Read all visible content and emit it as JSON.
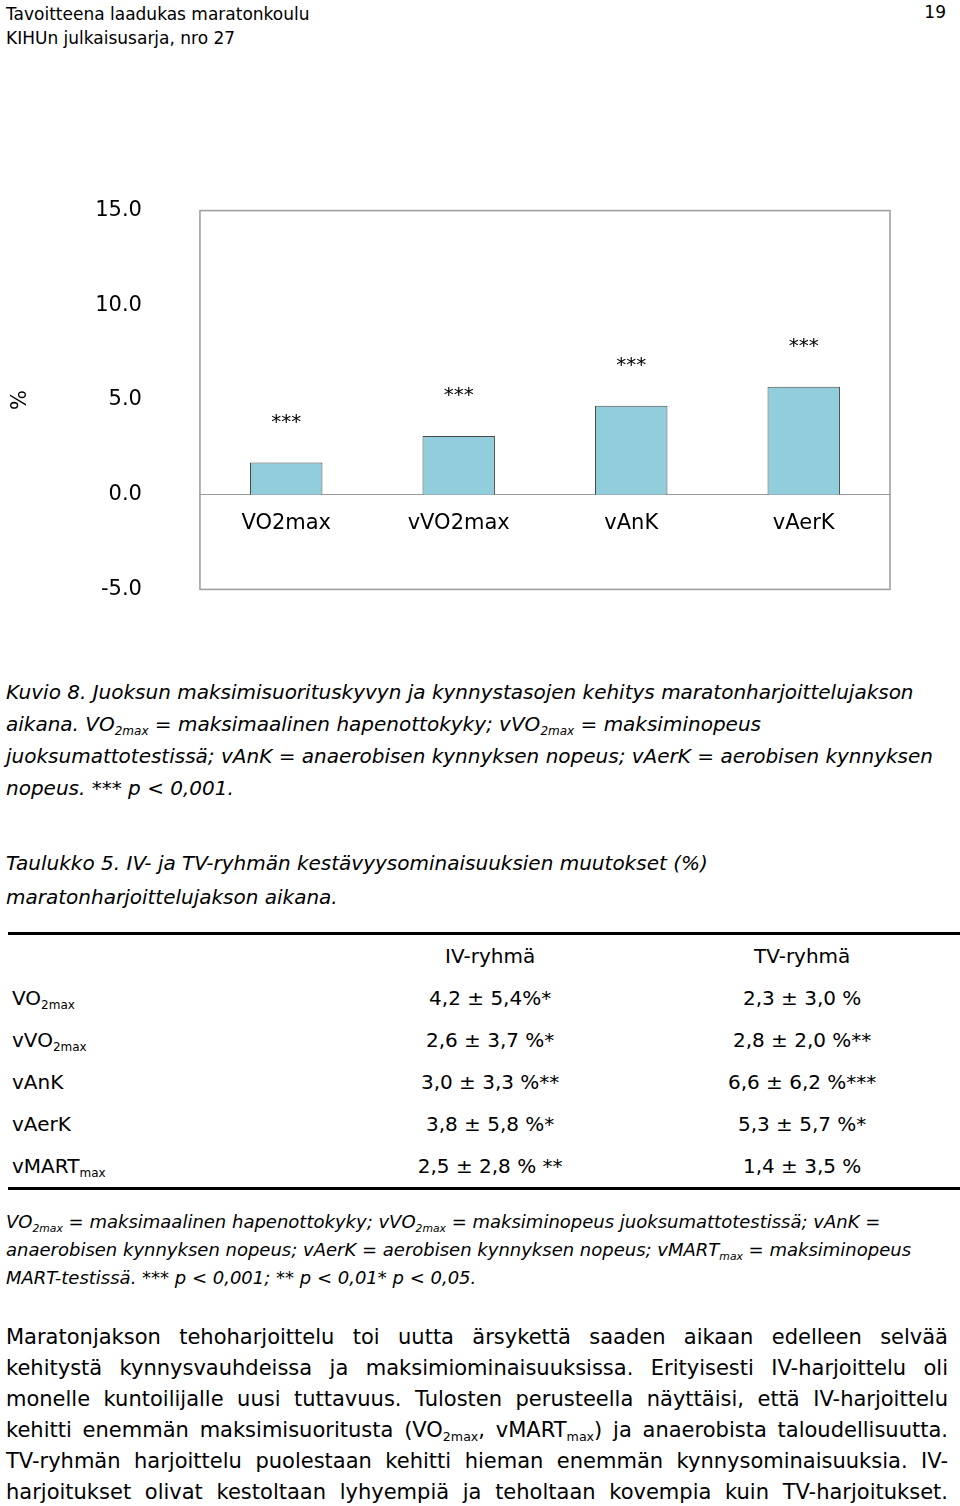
{
  "header": {
    "left": [
      "Tavoitteena laadukas maratonkoulu",
      "KIHUn julkaisusarja, nro 27"
    ],
    "page_number": "19"
  },
  "chart_data": {
    "type": "bar",
    "categories": [
      "VO2max",
      "vVO2max",
      "vAnK",
      "vAerK"
    ],
    "values": [
      1.7,
      3.1,
      4.7,
      5.7
    ],
    "color": "#92cddc",
    "annotations": [
      "***",
      "***",
      "***",
      "***"
    ],
    "ylabel": "%",
    "ylim": [
      -5,
      15
    ],
    "yticks": [
      {
        "value": -5,
        "label": "-5.0"
      },
      {
        "value": 0,
        "label": "0.0"
      },
      {
        "value": 5,
        "label": "5.0"
      },
      {
        "value": 10,
        "label": "10.0"
      },
      {
        "value": 15,
        "label": "15.0"
      }
    ],
    "grid": false
  },
  "figure_caption": [
    "Kuvio 8. Juoksun maksimisuorituskyvyn ja kynnystasojen kehitys maratonharjoittelujakson aikana. VO",
    {
      "sub": "2max"
    },
    " = maksimaalinen hapenottokyky; vVO",
    {
      "sub": "2max"
    },
    " = maksiminopeus juoksumattotestissä; vAnK = anaerobisen kynnyksen nopeus; vAerK = aerobisen kynnyksen nopeus. *** p < 0,001."
  ],
  "table": {
    "title": "Taulukko 5. IV- ja TV-ryhmän kestävyysominaisuuksien muutokset (%) maratonharjoittelujakson aikana.",
    "columns": [
      "IV-ryhmä",
      "TV-ryhmä"
    ],
    "rows": [
      {
        "label": [
          "VO",
          {
            "sub": "2max"
          }
        ],
        "cells": [
          "4,2 ± 5,4%*",
          "2,3 ± 3,0 %"
        ]
      },
      {
        "label": [
          "vVO",
          {
            "sub": "2max"
          }
        ],
        "cells": [
          "2,6 ± 3,7 %*",
          "2,8 ± 2,0 %**"
        ]
      },
      {
        "label": [
          "vAnK"
        ],
        "cells": [
          "3,0 ± 3,3 %**",
          "6,6 ± 6,2 %***"
        ]
      },
      {
        "label": [
          "vAerK"
        ],
        "cells": [
          "3,8 ± 5,8 %*",
          "5,3 ± 5,7 %*"
        ]
      },
      {
        "label": [
          "vMART",
          {
            "sub": "max"
          }
        ],
        "cells": [
          "2,5 ± 2,8 % **",
          "1,4 ± 3,5 %"
        ]
      }
    ]
  },
  "table_note": [
    "VO",
    {
      "sub": "2max"
    },
    " = maksimaalinen hapenottokyky; vVO",
    {
      "sub": "2max"
    },
    " = maksiminopeus juoksumattotestissä; vAnK = anaerobisen kynnyksen nopeus; vAerK = aerobisen kynnyksen nopeus; vMART",
    {
      "sub": "max"
    },
    " = maksiminopeus MART-testissä. *** p < 0,001; ** p < 0,01* p < 0,05."
  ],
  "body": [
    "Maratonjakson tehoharjoittelu toi uutta ärsykettä saaden aikaan edelleen selvää kehitystä kynnysvauhdeissa ja maksimiominaisuuksissa. Erityisesti IV-harjoittelu oli monelle kuntoilijalle uusi tuttavuus. Tulosten perusteella näyttäisi, että IV-harjoittelu kehitti enemmän maksimisuoritusta (VO",
    {
      "sub": "2max"
    },
    ", vMART",
    {
      "sub": "max"
    },
    ") ja anaerobista taloudellisuutta. TV-ryhmän harjoittelu puolestaan kehitti hieman enemmän kynnysominaisuuksia. IV-harjoitukset olivat kestoltaan lyhyempiä ja teholtaan kovempia kuin TV-harjoitukset. Löydökset tukevat aiempia tutkimuksia IV-harjoittelun vaikutuksis-"
  ]
}
